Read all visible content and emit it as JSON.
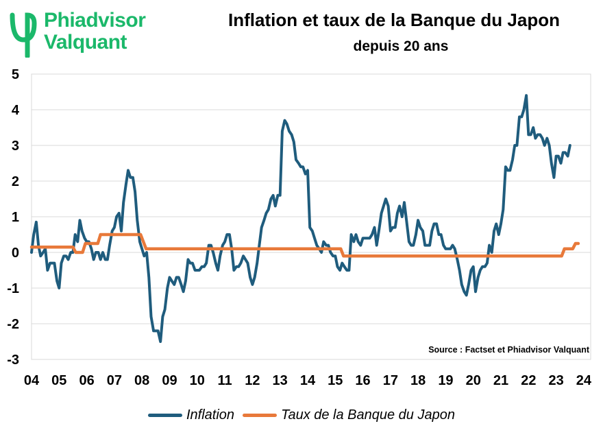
{
  "logo": {
    "line1": "Phiadvisor",
    "line2": "Valquant",
    "brand_color": "#1bb86a"
  },
  "chart_data": {
    "type": "line",
    "title": "Inflation et taux de la Banque du Japon",
    "subtitle": "depuis 20 ans",
    "source": "Source : Factset et Phiadvisor Valquant",
    "xlim": [
      2004,
      2024.25
    ],
    "ylim": [
      -3,
      5
    ],
    "x_ticks": [
      2004,
      2005,
      2006,
      2007,
      2008,
      2009,
      2010,
      2011,
      2012,
      2013,
      2014,
      2015,
      2016,
      2017,
      2018,
      2019,
      2020,
      2021,
      2022,
      2023,
      2024
    ],
    "x_tick_labels": [
      "04",
      "05",
      "06",
      "07",
      "08",
      "09",
      "10",
      "11",
      "12",
      "13",
      "14",
      "15",
      "16",
      "17",
      "18",
      "19",
      "20",
      "21",
      "22",
      "23",
      "24"
    ],
    "y_ticks": [
      -3,
      -2,
      -1,
      0,
      1,
      2,
      3,
      4,
      5
    ],
    "grid": "horizontal",
    "legend_position": "bottom",
    "series": [
      {
        "name": "Inflation",
        "color": "#1f5c7d",
        "points": [
          [
            2004.0,
            0.0
          ],
          [
            2004.08,
            0.5
          ],
          [
            2004.17,
            0.85
          ],
          [
            2004.25,
            0.2
          ],
          [
            2004.33,
            -0.1
          ],
          [
            2004.42,
            0.0
          ],
          [
            2004.5,
            0.1
          ],
          [
            2004.58,
            -0.5
          ],
          [
            2004.67,
            -0.3
          ],
          [
            2004.75,
            -0.3
          ],
          [
            2004.83,
            -0.3
          ],
          [
            2004.92,
            -0.8
          ],
          [
            2005.0,
            -1.0
          ],
          [
            2005.08,
            -0.3
          ],
          [
            2005.17,
            -0.1
          ],
          [
            2005.25,
            -0.1
          ],
          [
            2005.33,
            -0.2
          ],
          [
            2005.42,
            0.0
          ],
          [
            2005.5,
            0.0
          ],
          [
            2005.58,
            0.5
          ],
          [
            2005.67,
            0.3
          ],
          [
            2005.75,
            0.9
          ],
          [
            2005.83,
            0.6
          ],
          [
            2005.92,
            0.4
          ],
          [
            2006.0,
            0.3
          ],
          [
            2006.08,
            0.3
          ],
          [
            2006.17,
            0.1
          ],
          [
            2006.25,
            -0.2
          ],
          [
            2006.33,
            0.0
          ],
          [
            2006.42,
            0.0
          ],
          [
            2006.5,
            -0.2
          ],
          [
            2006.58,
            0.0
          ],
          [
            2006.67,
            -0.2
          ],
          [
            2006.75,
            -0.2
          ],
          [
            2006.83,
            0.2
          ],
          [
            2006.92,
            0.6
          ],
          [
            2007.0,
            0.7
          ],
          [
            2007.08,
            1.0
          ],
          [
            2007.17,
            1.1
          ],
          [
            2007.25,
            0.6
          ],
          [
            2007.33,
            1.4
          ],
          [
            2007.42,
            1.9
          ],
          [
            2007.5,
            2.3
          ],
          [
            2007.58,
            2.1
          ],
          [
            2007.67,
            2.1
          ],
          [
            2007.75,
            1.7
          ],
          [
            2007.83,
            0.9
          ],
          [
            2007.92,
            0.3
          ],
          [
            2008.0,
            0.1
          ],
          [
            2008.08,
            -0.1
          ],
          [
            2008.17,
            0.0
          ],
          [
            2008.25,
            -0.7
          ],
          [
            2008.33,
            -1.8
          ],
          [
            2008.42,
            -2.2
          ],
          [
            2008.5,
            -2.2
          ],
          [
            2008.58,
            -2.2
          ],
          [
            2008.67,
            -2.5
          ],
          [
            2008.75,
            -1.8
          ],
          [
            2008.83,
            -1.6
          ],
          [
            2008.92,
            -1.0
          ],
          [
            2009.0,
            -0.7
          ],
          [
            2009.08,
            -0.8
          ],
          [
            2009.17,
            -0.9
          ],
          [
            2009.25,
            -0.7
          ],
          [
            2009.33,
            -0.7
          ],
          [
            2009.42,
            -0.9
          ],
          [
            2009.5,
            -1.1
          ],
          [
            2009.58,
            -0.8
          ],
          [
            2009.67,
            -0.2
          ],
          [
            2009.75,
            -0.3
          ],
          [
            2009.83,
            -0.3
          ],
          [
            2009.92,
            -0.5
          ],
          [
            2010.0,
            -0.5
          ],
          [
            2010.08,
            -0.5
          ],
          [
            2010.17,
            -0.4
          ],
          [
            2010.25,
            -0.4
          ],
          [
            2010.33,
            -0.3
          ],
          [
            2010.42,
            0.2
          ],
          [
            2010.5,
            0.2
          ],
          [
            2010.58,
            0.0
          ],
          [
            2010.67,
            -0.3
          ],
          [
            2010.75,
            -0.5
          ],
          [
            2010.83,
            -0.1
          ],
          [
            2010.92,
            0.2
          ],
          [
            2011.0,
            0.3
          ],
          [
            2011.08,
            0.5
          ],
          [
            2011.17,
            0.5
          ],
          [
            2011.25,
            0.1
          ],
          [
            2011.33,
            -0.5
          ],
          [
            2011.42,
            -0.4
          ],
          [
            2011.5,
            -0.4
          ],
          [
            2011.58,
            -0.3
          ],
          [
            2011.67,
            -0.1
          ],
          [
            2011.75,
            -0.2
          ],
          [
            2011.83,
            -0.3
          ],
          [
            2011.92,
            -0.7
          ],
          [
            2012.0,
            -0.9
          ],
          [
            2012.08,
            -0.7
          ],
          [
            2012.17,
            -0.3
          ],
          [
            2012.25,
            0.2
          ],
          [
            2012.33,
            0.7
          ],
          [
            2012.42,
            0.9
          ],
          [
            2012.5,
            1.1
          ],
          [
            2012.58,
            1.2
          ],
          [
            2012.67,
            1.5
          ],
          [
            2012.75,
            1.6
          ],
          [
            2012.83,
            1.3
          ],
          [
            2012.92,
            1.6
          ],
          [
            2013.0,
            1.6
          ],
          [
            2013.08,
            3.4
          ],
          [
            2013.17,
            3.7
          ],
          [
            2013.25,
            3.6
          ],
          [
            2013.33,
            3.4
          ],
          [
            2013.42,
            3.3
          ],
          [
            2013.5,
            3.1
          ],
          [
            2013.58,
            2.6
          ],
          [
            2013.67,
            2.5
          ],
          [
            2013.75,
            2.4
          ],
          [
            2013.83,
            2.4
          ],
          [
            2013.92,
            2.2
          ],
          [
            2014.0,
            2.3
          ],
          [
            2014.08,
            0.7
          ],
          [
            2014.17,
            0.6
          ],
          [
            2014.25,
            0.4
          ],
          [
            2014.33,
            0.2
          ],
          [
            2014.42,
            0.1
          ],
          [
            2014.5,
            0.0
          ],
          [
            2014.58,
            0.3
          ],
          [
            2014.67,
            0.2
          ],
          [
            2014.75,
            0.2
          ],
          [
            2014.83,
            0.0
          ],
          [
            2014.92,
            -0.1
          ],
          [
            2015.0,
            -0.1
          ],
          [
            2015.08,
            -0.4
          ],
          [
            2015.17,
            -0.5
          ],
          [
            2015.25,
            -0.3
          ],
          [
            2015.33,
            -0.4
          ],
          [
            2015.42,
            -0.5
          ],
          [
            2015.5,
            -0.5
          ],
          [
            2015.58,
            0.5
          ],
          [
            2015.67,
            0.3
          ],
          [
            2015.75,
            0.5
          ],
          [
            2015.83,
            0.3
          ],
          [
            2015.92,
            0.2
          ],
          [
            2016.0,
            0.4
          ],
          [
            2016.08,
            0.4
          ],
          [
            2016.17,
            0.4
          ],
          [
            2016.25,
            0.4
          ],
          [
            2016.33,
            0.5
          ],
          [
            2016.42,
            0.7
          ],
          [
            2016.5,
            0.2
          ],
          [
            2016.58,
            0.6
          ],
          [
            2016.67,
            1.1
          ],
          [
            2016.75,
            1.3
          ],
          [
            2016.83,
            1.5
          ],
          [
            2016.92,
            1.3
          ],
          [
            2017.0,
            0.6
          ],
          [
            2017.08,
            0.7
          ],
          [
            2017.17,
            0.7
          ],
          [
            2017.25,
            1.1
          ],
          [
            2017.33,
            1.3
          ],
          [
            2017.42,
            1.0
          ],
          [
            2017.5,
            1.4
          ],
          [
            2017.58,
            0.9
          ],
          [
            2017.67,
            0.3
          ],
          [
            2017.75,
            0.2
          ],
          [
            2017.83,
            0.2
          ],
          [
            2017.92,
            0.5
          ],
          [
            2018.0,
            0.9
          ],
          [
            2018.08,
            0.7
          ],
          [
            2018.17,
            0.6
          ],
          [
            2018.25,
            0.2
          ],
          [
            2018.33,
            0.2
          ],
          [
            2018.42,
            0.2
          ],
          [
            2018.5,
            0.6
          ],
          [
            2018.58,
            0.8
          ],
          [
            2018.67,
            0.8
          ],
          [
            2018.75,
            0.5
          ],
          [
            2018.83,
            0.5
          ],
          [
            2018.92,
            0.2
          ],
          [
            2019.0,
            0.1
          ],
          [
            2019.08,
            0.1
          ],
          [
            2019.17,
            0.1
          ],
          [
            2019.25,
            0.2
          ],
          [
            2019.33,
            0.1
          ],
          [
            2019.42,
            -0.2
          ],
          [
            2019.5,
            -0.5
          ],
          [
            2019.58,
            -0.9
          ],
          [
            2019.67,
            -1.1
          ],
          [
            2019.75,
            -1.2
          ],
          [
            2019.83,
            -0.9
          ],
          [
            2019.92,
            -0.5
          ],
          [
            2020.0,
            -0.4
          ],
          [
            2020.08,
            -1.1
          ],
          [
            2020.17,
            -0.7
          ],
          [
            2020.25,
            -0.5
          ],
          [
            2020.33,
            -0.4
          ],
          [
            2020.42,
            -0.4
          ],
          [
            2020.5,
            -0.3
          ],
          [
            2020.58,
            0.2
          ],
          [
            2020.67,
            0.0
          ],
          [
            2020.75,
            0.6
          ],
          [
            2020.83,
            0.8
          ],
          [
            2020.92,
            0.5
          ],
          [
            2021.0,
            0.8
          ],
          [
            2021.08,
            1.2
          ],
          [
            2021.17,
            2.4
          ],
          [
            2021.25,
            2.3
          ],
          [
            2021.33,
            2.3
          ],
          [
            2021.42,
            2.6
          ],
          [
            2021.5,
            3.0
          ],
          [
            2021.58,
            3.0
          ],
          [
            2021.67,
            3.8
          ],
          [
            2021.75,
            3.8
          ],
          [
            2021.83,
            4.0
          ],
          [
            2021.92,
            4.4
          ],
          [
            2022.0,
            3.3
          ],
          [
            2022.08,
            3.3
          ],
          [
            2022.17,
            3.5
          ],
          [
            2022.25,
            3.2
          ],
          [
            2022.33,
            3.3
          ],
          [
            2022.42,
            3.3
          ],
          [
            2022.5,
            3.2
          ],
          [
            2022.58,
            3.0
          ],
          [
            2022.67,
            3.2
          ],
          [
            2022.75,
            3.0
          ],
          [
            2022.83,
            2.5
          ],
          [
            2022.92,
            2.1
          ],
          [
            2023.0,
            2.7
          ],
          [
            2023.08,
            2.7
          ],
          [
            2023.17,
            2.5
          ],
          [
            2023.25,
            2.8
          ],
          [
            2023.33,
            2.8
          ],
          [
            2023.42,
            2.7
          ],
          [
            2023.5,
            3.0
          ]
        ]
      },
      {
        "name": "Taux de la Banque du Japon",
        "color": "#e8793a",
        "points": [
          [
            2004.0,
            0.15
          ],
          [
            2005.5,
            0.15
          ],
          [
            2005.6,
            0.0
          ],
          [
            2005.85,
            0.0
          ],
          [
            2005.95,
            0.25
          ],
          [
            2006.4,
            0.25
          ],
          [
            2006.5,
            0.5
          ],
          [
            2007.95,
            0.5
          ],
          [
            2008.15,
            0.1
          ],
          [
            2015.2,
            0.1
          ],
          [
            2015.3,
            -0.1
          ],
          [
            2023.2,
            -0.1
          ],
          [
            2023.3,
            0.1
          ],
          [
            2023.6,
            0.1
          ],
          [
            2023.7,
            0.25
          ],
          [
            2023.8,
            0.25
          ]
        ]
      }
    ]
  }
}
